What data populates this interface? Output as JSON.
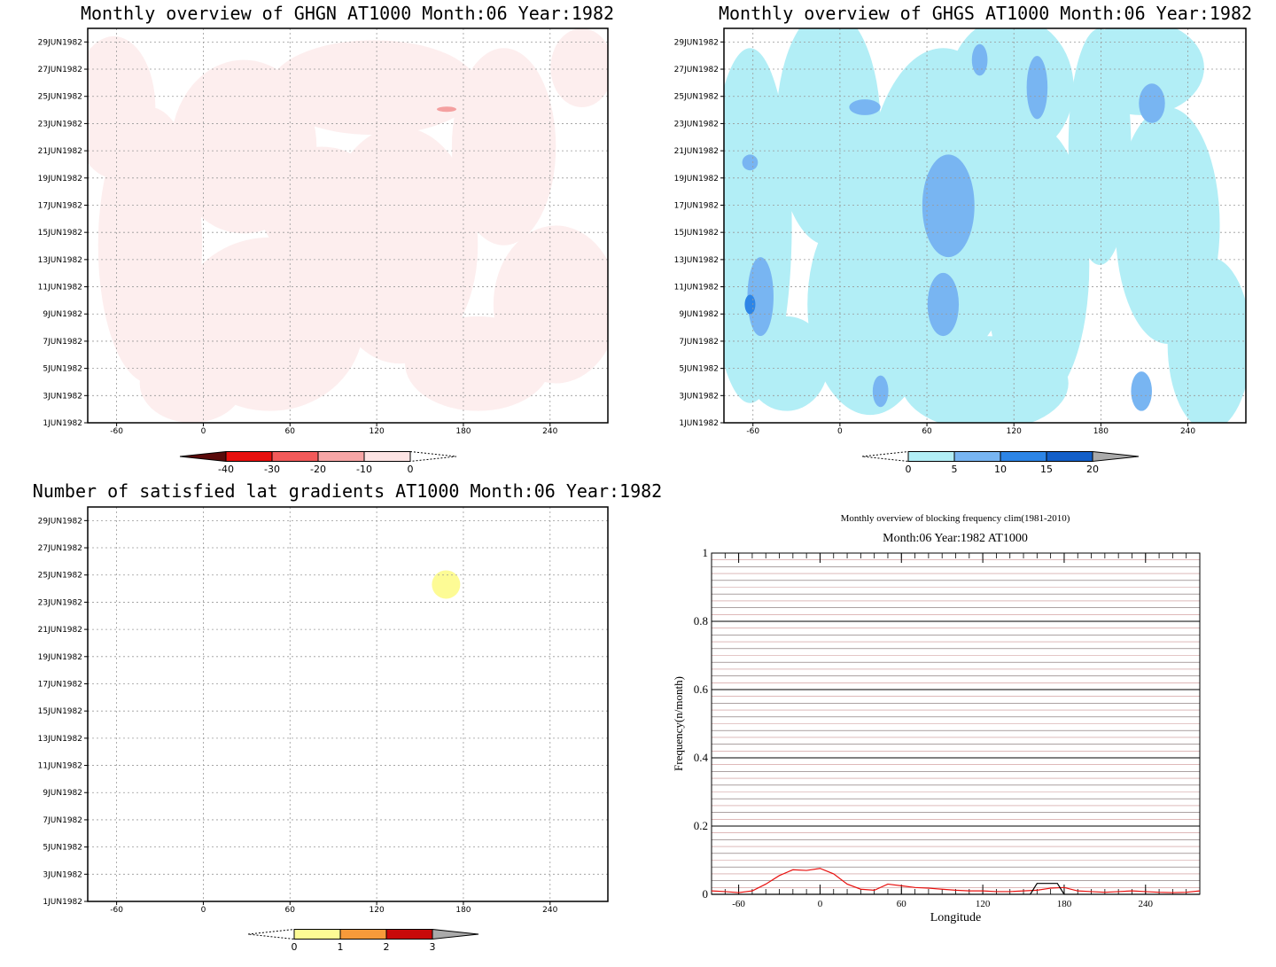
{
  "chart_data": [
    {
      "type": "heatmap",
      "title": "Monthly overview of GHGN AT1000 Month:06 Year:1982",
      "x_ticks": [
        "-60",
        "0",
        "60",
        "120",
        "180",
        "240"
      ],
      "x_values": [
        -60,
        0,
        60,
        120,
        180,
        240
      ],
      "xlim": [
        -80,
        280
      ],
      "y_ticks": [
        "1JUN1982",
        "3JUN1982",
        "5JUN1982",
        "7JUN1982",
        "9JUN1982",
        "11JUN1982",
        "13JUN1982",
        "15JUN1982",
        "17JUN1982",
        "19JUN1982",
        "21JUN1982",
        "23JUN1982",
        "25JUN1982",
        "27JUN1982",
        "29JUN1982"
      ],
      "ylim": [
        1,
        30
      ],
      "grid": true,
      "colorbar": {
        "labels": [
          "-40",
          "-30",
          "-20",
          "-10",
          "0"
        ],
        "colors": [
          "#5a0a0a",
          "#e8100e",
          "#f25a5a",
          "#f7a6a6",
          "#fde4e4"
        ],
        "extends": "both"
      }
    },
    {
      "type": "heatmap",
      "title": "Monthly overview of GHGS AT1000 Month:06 Year:1982",
      "x_ticks": [
        "-60",
        "0",
        "60",
        "120",
        "180",
        "240"
      ],
      "x_values": [
        -60,
        0,
        60,
        120,
        180,
        240
      ],
      "xlim": [
        -80,
        280
      ],
      "y_ticks": [
        "1JUN1982",
        "3JUN1982",
        "5JUN1982",
        "7JUN1982",
        "9JUN1982",
        "11JUN1982",
        "13JUN1982",
        "15JUN1982",
        "17JUN1982",
        "19JUN1982",
        "21JUN1982",
        "23JUN1982",
        "25JUN1982",
        "27JUN1982",
        "29JUN1982"
      ],
      "ylim": [
        1,
        30
      ],
      "grid": true,
      "colorbar": {
        "labels": [
          "0",
          "5",
          "10",
          "15",
          "20"
        ],
        "colors": [
          "#b2eef6",
          "#78b5f2",
          "#2d85e6",
          "#135fc8",
          "#aaaaaa"
        ],
        "extends": "both"
      }
    },
    {
      "type": "heatmap",
      "title": "Number of satisfied lat gradients AT1000 Month:06 Year:1982",
      "x_ticks": [
        "-60",
        "0",
        "60",
        "120",
        "180",
        "240"
      ],
      "x_values": [
        -60,
        0,
        60,
        120,
        180,
        240
      ],
      "xlim": [
        -80,
        280
      ],
      "y_ticks": [
        "1JUN1982",
        "3JUN1982",
        "5JUN1982",
        "7JUN1982",
        "9JUN1982",
        "11JUN1982",
        "13JUN1982",
        "15JUN1982",
        "17JUN1982",
        "19JUN1982",
        "21JUN1982",
        "23JUN1982",
        "25JUN1982",
        "27JUN1982",
        "29JUN1982"
      ],
      "ylim": [
        1,
        30
      ],
      "grid": true,
      "colorbar": {
        "labels": [
          "0",
          "1",
          "2",
          "3"
        ],
        "colors": [
          "#fdfb95",
          "#f79a3a",
          "#c80a0a",
          "#aaaaaa"
        ],
        "extends": "both"
      }
    },
    {
      "type": "line",
      "title": "Monthly overview of blocking frequency clim(1981-2010)",
      "subtitle": "Month:06 Year:1982  AT1000",
      "xlabel": "Longitude",
      "ylabel": "Frequency(n/month)",
      "x_ticks": [
        "-60",
        "0",
        "60",
        "120",
        "180",
        "240"
      ],
      "x_values": [
        -60,
        0,
        60,
        120,
        180,
        240
      ],
      "y_ticks": [
        "0",
        "0.2",
        "0.4",
        "0.6",
        "0.8",
        "1"
      ],
      "y_values": [
        0,
        0.2,
        0.4,
        0.6,
        0.8,
        1
      ],
      "xlim": [
        -80,
        280
      ],
      "ylim": [
        0,
        1
      ],
      "grid": true,
      "series": [
        {
          "color": "#e8100e",
          "x": [
            -80,
            -70,
            -60,
            -50,
            -40,
            -30,
            -20,
            -10,
            0,
            10,
            20,
            30,
            40,
            50,
            60,
            70,
            80,
            90,
            100,
            110,
            120,
            130,
            140,
            150,
            160,
            170,
            180,
            190,
            200,
            210,
            220,
            230,
            240,
            250,
            260,
            270,
            280
          ],
          "y": [
            0.01,
            0.008,
            0.005,
            0.01,
            0.03,
            0.055,
            0.072,
            0.07,
            0.076,
            0.06,
            0.03,
            0.015,
            0.012,
            0.03,
            0.025,
            0.02,
            0.018,
            0.015,
            0.012,
            0.01,
            0.01,
            0.008,
            0.008,
            0.01,
            0.012,
            0.018,
            0.02,
            0.01,
            0.008,
            0.006,
            0.008,
            0.01,
            0.008,
            0.006,
            0.005,
            0.006,
            0.01
          ]
        },
        {
          "color": "#000000",
          "x": [
            -80,
            155,
            160,
            175,
            180,
            280
          ],
          "y": [
            0,
            0,
            0.032,
            0.032,
            0,
            0
          ]
        }
      ]
    }
  ]
}
